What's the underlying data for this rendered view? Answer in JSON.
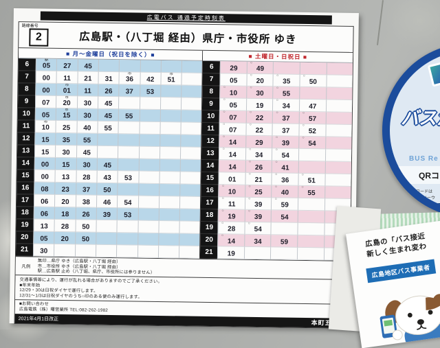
{
  "poster": {
    "top_title": "広電バス 通過予定時刻表",
    "route_label": "路線番号",
    "route_number": "2",
    "destination_title": "広島駅・（八丁堀 経由）県庁・市役所 ゆき",
    "weekday_table": {
      "header": "■ 月～金曜日（祝日を除く）■",
      "columns": 8,
      "rows": [
        {
          "h": "6",
          "m": [
            [
              "05",
              "駅"
            ],
            [
              "27",
              ""
            ],
            [
              "45",
              ""
            ]
          ]
        },
        {
          "h": "7",
          "m": [
            [
              "00",
              ""
            ],
            [
              "11",
              ""
            ],
            [
              "21",
              ""
            ],
            [
              "31",
              ""
            ],
            [
              "36",
              "市"
            ],
            [
              "42",
              ""
            ],
            [
              "51",
              "市"
            ]
          ]
        },
        {
          "h": "8",
          "m": [
            [
              "00",
              ""
            ],
            [
              "01",
              "市"
            ],
            [
              "11",
              ""
            ],
            [
              "26",
              ""
            ],
            [
              "37",
              ""
            ],
            [
              "53",
              ""
            ]
          ]
        },
        {
          "h": "9",
          "m": [
            [
              "07",
              ""
            ],
            [
              "20",
              "市"
            ],
            [
              "30",
              ""
            ],
            [
              "45",
              ""
            ]
          ]
        },
        {
          "h": "10",
          "m": [
            [
              "05",
              ""
            ],
            [
              "15",
              "市"
            ],
            [
              "30",
              ""
            ],
            [
              "45",
              ""
            ],
            [
              "55",
              ""
            ]
          ]
        },
        {
          "h": "11",
          "m": [
            [
              "10",
              "市"
            ],
            [
              "25",
              ""
            ],
            [
              "40",
              ""
            ],
            [
              "55",
              ""
            ]
          ]
        },
        {
          "h": "12",
          "m": [
            [
              "15",
              ""
            ],
            [
              "35",
              ""
            ],
            [
              "55",
              ""
            ]
          ]
        },
        {
          "h": "13",
          "m": [
            [
              "15",
              ""
            ],
            [
              "30",
              ""
            ],
            [
              "45",
              ""
            ]
          ]
        },
        {
          "h": "14",
          "m": [
            [
              "00",
              ""
            ],
            [
              "15",
              ""
            ],
            [
              "30",
              ""
            ],
            [
              "45",
              ""
            ]
          ]
        },
        {
          "h": "15",
          "m": [
            [
              "00",
              ""
            ],
            [
              "13",
              ""
            ],
            [
              "28",
              ""
            ],
            [
              "43",
              ""
            ],
            [
              "53",
              ""
            ]
          ]
        },
        {
          "h": "16",
          "m": [
            [
              "08",
              ""
            ],
            [
              "23",
              ""
            ],
            [
              "37",
              ""
            ],
            [
              "50",
              ""
            ]
          ]
        },
        {
          "h": "17",
          "m": [
            [
              "06",
              ""
            ],
            [
              "20",
              ""
            ],
            [
              "38",
              ""
            ],
            [
              "46",
              ""
            ],
            [
              "54",
              ""
            ]
          ]
        },
        {
          "h": "18",
          "m": [
            [
              "06",
              ""
            ],
            [
              "18",
              ""
            ],
            [
              "26",
              ""
            ],
            [
              "39",
              ""
            ],
            [
              "53",
              ""
            ]
          ]
        },
        {
          "h": "19",
          "m": [
            [
              "13",
              ""
            ],
            [
              "28",
              ""
            ],
            [
              "50",
              ""
            ]
          ]
        },
        {
          "h": "20",
          "m": [
            [
              "05",
              ""
            ],
            [
              "20",
              ""
            ],
            [
              "50",
              ""
            ]
          ]
        },
        {
          "h": "21",
          "m": [
            [
              "30",
              ""
            ]
          ]
        }
      ]
    },
    "weekend_table": {
      "header": "■ 土曜日・日祝日 ■",
      "columns": 5,
      "rows": [
        {
          "h": "6",
          "m": [
            [
              "29",
              ""
            ],
            [
              "49",
              "○"
            ]
          ]
        },
        {
          "h": "7",
          "m": [
            [
              "05",
              ""
            ],
            [
              "20",
              "○"
            ],
            [
              "35",
              "○"
            ],
            [
              "50",
              "○"
            ]
          ]
        },
        {
          "h": "8",
          "m": [
            [
              "10",
              "○"
            ],
            [
              "30",
              "○"
            ],
            [
              "55",
              "○"
            ]
          ]
        },
        {
          "h": "9",
          "m": [
            [
              "05",
              "○"
            ],
            [
              "19",
              ""
            ],
            [
              "34",
              "○"
            ],
            [
              "47",
              ""
            ]
          ]
        },
        {
          "h": "10",
          "m": [
            [
              "07",
              "○"
            ],
            [
              "22",
              "○"
            ],
            [
              "37",
              "○"
            ],
            [
              "57",
              "○"
            ]
          ]
        },
        {
          "h": "11",
          "m": [
            [
              "07",
              "○"
            ],
            [
              "22",
              "○"
            ],
            [
              "37",
              ""
            ],
            [
              "52",
              "○"
            ]
          ]
        },
        {
          "h": "12",
          "m": [
            [
              "14",
              "○"
            ],
            [
              "29",
              ""
            ],
            [
              "39",
              "○"
            ],
            [
              "54",
              "○"
            ]
          ]
        },
        {
          "h": "13",
          "m": [
            [
              "14",
              "○"
            ],
            [
              "34",
              "○"
            ],
            [
              "54",
              "○"
            ]
          ]
        },
        {
          "h": "14",
          "m": [
            [
              "14",
              ""
            ],
            [
              "26",
              "○"
            ],
            [
              "41",
              "○"
            ]
          ]
        },
        {
          "h": "15",
          "m": [
            [
              "01",
              ""
            ],
            [
              "21",
              "○"
            ],
            [
              "36",
              "○"
            ],
            [
              "51",
              "○"
            ]
          ]
        },
        {
          "h": "16",
          "m": [
            [
              "10",
              "○"
            ],
            [
              "25",
              "○"
            ],
            [
              "40",
              "○"
            ],
            [
              "55",
              "○"
            ]
          ]
        },
        {
          "h": "17",
          "m": [
            [
              "11",
              "○"
            ],
            [
              "39",
              "○"
            ],
            [
              "59",
              "○"
            ]
          ]
        },
        {
          "h": "18",
          "m": [
            [
              "19",
              "○"
            ],
            [
              "39",
              "○"
            ],
            [
              "54",
              ""
            ]
          ]
        },
        {
          "h": "19",
          "m": [
            [
              "28",
              "○"
            ],
            [
              "54",
              "○"
            ]
          ]
        },
        {
          "h": "20",
          "m": [
            [
              "14",
              "○"
            ],
            [
              "34",
              ""
            ],
            [
              "59",
              ""
            ]
          ]
        },
        {
          "h": "21",
          "m": [
            [
              "19",
              ""
            ]
          ]
        }
      ]
    },
    "legend": {
      "label": "凡例",
      "lines": [
        "無印…県庁 ゆき（広島駅・八丁堀 経由）",
        "市…市役所 ゆき（広島駅・八丁堀 経由）",
        "駅…広島駅 止め（八丁堀、県庁、市役所には参りません）"
      ]
    },
    "notes": [
      "交通事情等により、運行が乱れる場合がありますのでご了承ください。",
      "■年末年始",
      "12/29・30は日祝ダイヤで運行します。",
      "12/31～1/3は日祝ダイヤのうち○印のある便のみ運行します。"
    ],
    "contact_lines": [
      "■お問い合わせ",
      "広島電鉄（株）曙営業所 TEL:082-262-1982"
    ],
    "footer": {
      "revision": "2021年4月1日改正",
      "stop_name": "本町五丁目"
    }
  },
  "sticker": {
    "headline_fragment1": "バスが",
    "headline_fragment2": "わ",
    "subtitle_fragment": "BUS Re",
    "band_fragment": "QRコー",
    "note_fragment1": "※QRコードは",
    "note_fragment2": "㈱デンソーウ",
    "url_fragment": "htt"
  },
  "flyer": {
    "line1": "広島の「バス接近",
    "line2": "新しく生まれ変わ",
    "badge": "広島地区バス事業者"
  },
  "colors": {
    "weekday_row_blue": "#b9d7e9",
    "weekend_row_pink": "#f2d4df",
    "weekday_header_text": "#1d3e9b",
    "weekend_header_text": "#c0272d",
    "hour_cell_bg": "#141414",
    "sticker_navy": "#1b4c9c",
    "flyer_badge_blue": "#1e6db5",
    "tape_green": "#b4ddbc"
  }
}
